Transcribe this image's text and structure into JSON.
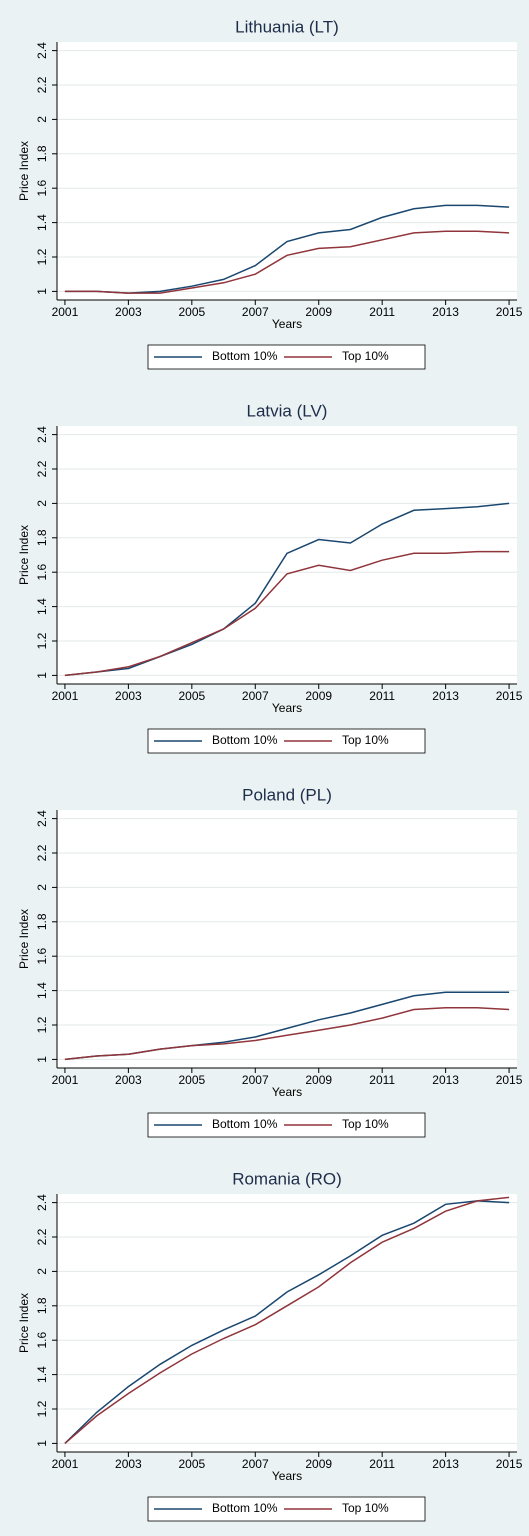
{
  "chart_data": [
    {
      "type": "line",
      "title": "Lithuania (LT)",
      "xlabel": "Years",
      "ylabel": "Price Index",
      "x": [
        2001,
        2002,
        2003,
        2004,
        2005,
        2006,
        2007,
        2008,
        2009,
        2010,
        2011,
        2012,
        2013,
        2014,
        2015
      ],
      "series": [
        {
          "name": "Bottom 10%",
          "color": "#1a476f",
          "values": [
            1.0,
            1.0,
            0.99,
            1.0,
            1.03,
            1.07,
            1.15,
            1.29,
            1.34,
            1.36,
            1.43,
            1.48,
            1.5,
            1.5,
            1.49
          ]
        },
        {
          "name": "Top 10%",
          "color": "#90353b",
          "values": [
            1.0,
            1.0,
            0.99,
            0.99,
            1.02,
            1.05,
            1.1,
            1.21,
            1.25,
            1.26,
            1.3,
            1.34,
            1.35,
            1.35,
            1.34
          ]
        }
      ],
      "xlim": [
        2000.75,
        2015.25
      ],
      "ylim": [
        0.95,
        2.45
      ],
      "xticks": [
        2001,
        2003,
        2005,
        2007,
        2009,
        2011,
        2013,
        2015
      ],
      "yticks": [
        1,
        1.2,
        1.4,
        1.6,
        1.8,
        2,
        2.2,
        2.4
      ],
      "grid": true
    },
    {
      "type": "line",
      "title": "Latvia (LV)",
      "xlabel": "Years",
      "ylabel": "Price Index",
      "x": [
        2001,
        2002,
        2003,
        2004,
        2005,
        2006,
        2007,
        2008,
        2009,
        2010,
        2011,
        2012,
        2013,
        2014,
        2015
      ],
      "series": [
        {
          "name": "Bottom 10%",
          "color": "#1a476f",
          "values": [
            1.0,
            1.02,
            1.04,
            1.11,
            1.18,
            1.27,
            1.42,
            1.71,
            1.79,
            1.77,
            1.88,
            1.96,
            1.97,
            1.98,
            2.0
          ]
        },
        {
          "name": "Top 10%",
          "color": "#90353b",
          "values": [
            1.0,
            1.02,
            1.05,
            1.11,
            1.19,
            1.27,
            1.39,
            1.59,
            1.64,
            1.61,
            1.67,
            1.71,
            1.71,
            1.72,
            1.72
          ]
        }
      ],
      "xlim": [
        2000.75,
        2015.25
      ],
      "ylim": [
        0.95,
        2.45
      ],
      "xticks": [
        2001,
        2003,
        2005,
        2007,
        2009,
        2011,
        2013,
        2015
      ],
      "yticks": [
        1,
        1.2,
        1.4,
        1.6,
        1.8,
        2,
        2.2,
        2.4
      ],
      "grid": true
    },
    {
      "type": "line",
      "title": "Poland (PL)",
      "xlabel": "Years",
      "ylabel": "Price Index",
      "x": [
        2001,
        2002,
        2003,
        2004,
        2005,
        2006,
        2007,
        2008,
        2009,
        2010,
        2011,
        2012,
        2013,
        2014,
        2015
      ],
      "series": [
        {
          "name": "Bottom 10%",
          "color": "#1a476f",
          "values": [
            1.0,
            1.02,
            1.03,
            1.06,
            1.08,
            1.1,
            1.13,
            1.18,
            1.23,
            1.27,
            1.32,
            1.37,
            1.39,
            1.39,
            1.39
          ]
        },
        {
          "name": "Top 10%",
          "color": "#90353b",
          "values": [
            1.0,
            1.02,
            1.03,
            1.06,
            1.08,
            1.09,
            1.11,
            1.14,
            1.17,
            1.2,
            1.24,
            1.29,
            1.3,
            1.3,
            1.29
          ]
        }
      ],
      "xlim": [
        2000.75,
        2015.25
      ],
      "ylim": [
        0.95,
        2.45
      ],
      "xticks": [
        2001,
        2003,
        2005,
        2007,
        2009,
        2011,
        2013,
        2015
      ],
      "yticks": [
        1,
        1.2,
        1.4,
        1.6,
        1.8,
        2,
        2.2,
        2.4
      ],
      "grid": true
    },
    {
      "type": "line",
      "title": "Romania (RO)",
      "xlabel": "Years",
      "ylabel": "Price Index",
      "x": [
        2001,
        2002,
        2003,
        2004,
        2005,
        2006,
        2007,
        2008,
        2009,
        2010,
        2011,
        2012,
        2013,
        2014,
        2015
      ],
      "series": [
        {
          "name": "Bottom 10%",
          "color": "#1a476f",
          "values": [
            1.0,
            1.18,
            1.33,
            1.46,
            1.57,
            1.66,
            1.74,
            1.88,
            1.98,
            2.09,
            2.21,
            2.28,
            2.39,
            2.41,
            2.4
          ]
        },
        {
          "name": "Top 10%",
          "color": "#90353b",
          "values": [
            1.0,
            1.16,
            1.29,
            1.41,
            1.52,
            1.61,
            1.69,
            1.8,
            1.91,
            2.05,
            2.17,
            2.25,
            2.35,
            2.41,
            2.43
          ]
        }
      ],
      "xlim": [
        2000.75,
        2015.25
      ],
      "ylim": [
        0.95,
        2.45
      ],
      "xticks": [
        2001,
        2003,
        2005,
        2007,
        2009,
        2011,
        2013,
        2015
      ],
      "yticks": [
        1,
        1.2,
        1.4,
        1.6,
        1.8,
        2,
        2.2,
        2.4
      ],
      "grid": true
    }
  ]
}
